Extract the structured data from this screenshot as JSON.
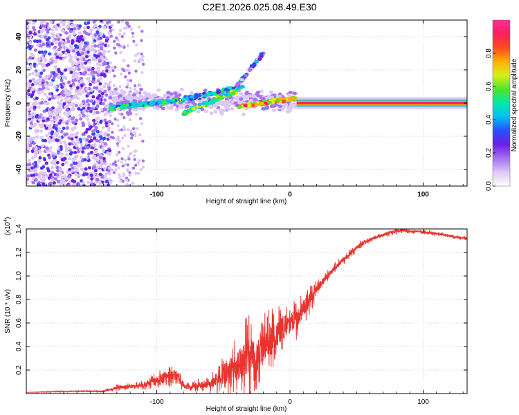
{
  "title": "C2E1.2026.025.08.49.E30",
  "chart_data": [
    {
      "type": "heatmap",
      "title": "C2E1.2026.025.08.49.E30",
      "xlabel": "Height of straight line (km)",
      "ylabel": "Frequency (Hz)",
      "xlim": [
        -198,
        133
      ],
      "ylim": [
        -50,
        50
      ],
      "xticks": [
        -100,
        0,
        100
      ],
      "xtick_labels": [
        "-100",
        "0",
        "100"
      ],
      "yticks": [
        -40,
        -20,
        0,
        20,
        40
      ],
      "ytick_labels": [
        "-40",
        "-20",
        "0",
        "20",
        "40"
      ],
      "grid": true,
      "noise_region_km": [
        -198,
        -135
      ],
      "features": [
        {
          "name": "noise-cluster",
          "x": [
            -198,
            -135
          ],
          "freq": [
            -50,
            50
          ],
          "amplitude": 0.15
        },
        {
          "name": "lower-branch",
          "x": [
            -135,
            -80
          ],
          "freq": [
            -3,
            2
          ],
          "amplitude": 0.45
        },
        {
          "name": "upper-branch",
          "x": [
            -80,
            -35
          ],
          "freq": [
            2,
            10
          ],
          "amplitude": 0.4
        },
        {
          "name": "mid-branch",
          "x": [
            -80,
            -38
          ],
          "freq": [
            -6,
            8
          ],
          "amplitude": 0.55
        },
        {
          "name": "rising-tail",
          "x": [
            -40,
            -20
          ],
          "freq": [
            10,
            30
          ],
          "amplitude": 0.25
        },
        {
          "name": "converging",
          "x": [
            -38,
            5
          ],
          "freq": [
            -2,
            3
          ],
          "amplitude": 0.7
        },
        {
          "name": "carrier-line",
          "x": [
            5,
            133
          ],
          "freq": [
            0,
            0
          ],
          "amplitude": 0.9
        }
      ],
      "colorbar": {
        "label": "Normalized spectral amplitude",
        "ticks": [
          0.0,
          0.2,
          0.4,
          0.6,
          0.8
        ],
        "tick_labels": [
          "0.0",
          "0.2",
          "0.4",
          "0.6",
          "0.8"
        ],
        "range": [
          0,
          1
        ],
        "colors": [
          "#ffffff",
          "#dcc8f6",
          "#a572f0",
          "#6b1fe6",
          "#2a4cff",
          "#00c2f5",
          "#00e8a8",
          "#4ce62a",
          "#d8ef18",
          "#ffb000",
          "#ff4a1e",
          "#ff1f5a",
          "#ff2d9a"
        ]
      }
    },
    {
      "type": "line",
      "xlabel": "Height of straight line (km)",
      "ylabel": "SNR (10 * v/v)",
      "y_multiplier_label": "(x10",
      "y_multiplier_exp": "4",
      "y_multiplier_close": ")",
      "xlim": [
        -198,
        133
      ],
      "ylim": [
        0,
        1.4
      ],
      "xticks": [
        -100,
        0,
        100
      ],
      "xtick_labels": [
        "-100",
        "0",
        "100"
      ],
      "yticks": [
        0.2,
        0.4,
        0.6,
        0.8,
        1.0,
        1.2,
        1.4
      ],
      "ytick_labels": [
        "0.2",
        "0.4",
        "0.6",
        "0.8",
        "1.0",
        "1.2",
        "1.4"
      ],
      "grid": true,
      "series": [
        {
          "name": "SNR",
          "color": "#e8332e",
          "x": [
            -198,
            -180,
            -160,
            -140,
            -130,
            -120,
            -110,
            -100,
            -95,
            -90,
            -85,
            -80,
            -75,
            -70,
            -65,
            -60,
            -55,
            -50,
            -45,
            -40,
            -35,
            -30,
            -25,
            -20,
            -15,
            -10,
            -5,
            0,
            5,
            10,
            15,
            20,
            25,
            30,
            35,
            40,
            45,
            50,
            55,
            60,
            65,
            70,
            75,
            80,
            85,
            90,
            95,
            100,
            105,
            110,
            115,
            120,
            125,
            133
          ],
          "y": [
            0.01,
            0.015,
            0.02,
            0.02,
            0.05,
            0.06,
            0.07,
            0.11,
            0.14,
            0.16,
            0.15,
            0.07,
            0.05,
            0.07,
            0.08,
            0.07,
            0.12,
            0.17,
            0.2,
            0.22,
            0.3,
            0.33,
            0.3,
            0.4,
            0.48,
            0.5,
            0.57,
            0.6,
            0.63,
            0.72,
            0.8,
            0.88,
            0.96,
            1.02,
            1.08,
            1.14,
            1.19,
            1.24,
            1.28,
            1.31,
            1.33,
            1.35,
            1.37,
            1.38,
            1.39,
            1.38,
            1.38,
            1.37,
            1.37,
            1.36,
            1.35,
            1.34,
            1.33,
            1.32
          ],
          "noise_amplitude": [
            0,
            0.005,
            0.005,
            0.01,
            0.03,
            0.03,
            0.04,
            0.08,
            0.09,
            0.1,
            0.08,
            0.05,
            0.04,
            0.05,
            0.07,
            0.07,
            0.14,
            0.2,
            0.24,
            0.28,
            0.32,
            0.36,
            0.3,
            0.3,
            0.28,
            0.25,
            0.22,
            0.2,
            0.18,
            0.15,
            0.12,
            0.08,
            0.06,
            0.05,
            0.05,
            0.04,
            0.04,
            0.04,
            0.04,
            0.03,
            0.03,
            0.03,
            0.03,
            0.03,
            0.03,
            0.02,
            0.02,
            0.02,
            0.02,
            0.02,
            0.02,
            0.02,
            0.02,
            0.02
          ]
        }
      ]
    }
  ]
}
